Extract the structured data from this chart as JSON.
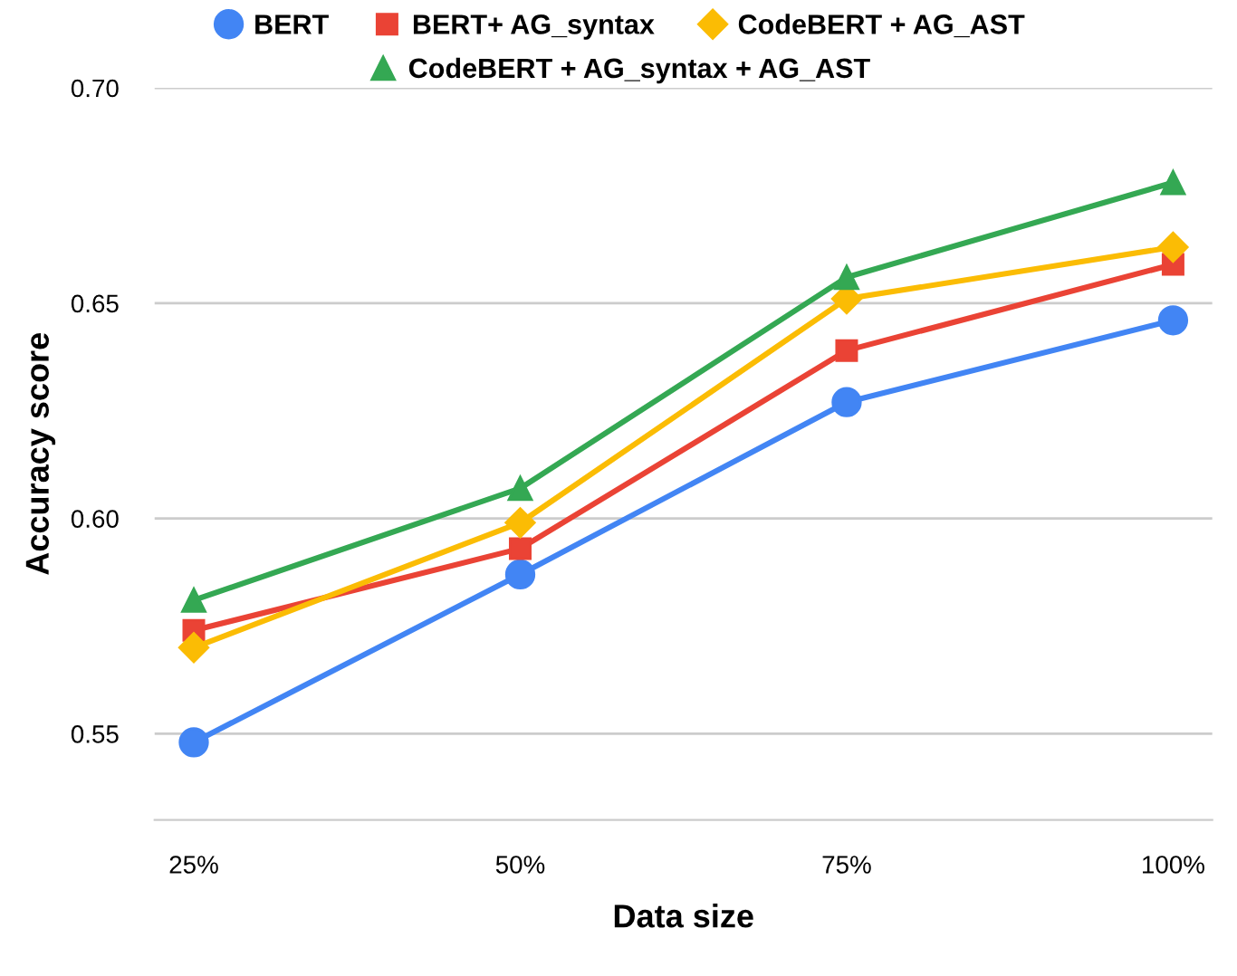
{
  "chart_data": {
    "type": "line",
    "xlabel": "Data size",
    "ylabel": "Accuracy score",
    "categories": [
      "25%",
      "50%",
      "75%",
      "100%"
    ],
    "series": [
      {
        "name": "BERT",
        "color": "#4285f4",
        "marker": "circle",
        "values": [
          0.548,
          0.587,
          0.627,
          0.646
        ]
      },
      {
        "name": "BERT+ AG_syntax",
        "color": "#ea4335",
        "marker": "square",
        "values": [
          0.574,
          0.593,
          0.639,
          0.659
        ]
      },
      {
        "name": "CodeBERT + AG_AST",
        "color": "#fbbc04",
        "marker": "diamond",
        "values": [
          0.57,
          0.599,
          0.651,
          0.663
        ]
      },
      {
        "name": "CodeBERT + AG_syntax + AG_AST",
        "color": "#34a853",
        "marker": "triangle",
        "values": [
          0.581,
          0.607,
          0.656,
          0.678
        ]
      }
    ],
    "ylim": [
      0.53,
      0.7
    ],
    "yticks": [
      {
        "value": 0.55,
        "label": "0.55"
      },
      {
        "value": 0.6,
        "label": "0.60"
      },
      {
        "value": 0.65,
        "label": "0.65"
      },
      {
        "value": 0.7,
        "label": "0.70"
      }
    ],
    "grid": "y",
    "legend": "top"
  }
}
